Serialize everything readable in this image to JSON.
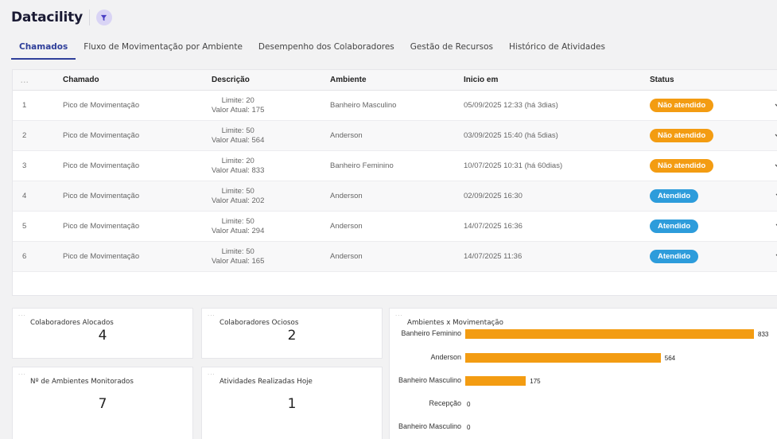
{
  "header": {
    "title": "Datacility"
  },
  "tabs": [
    {
      "label": "Chamados",
      "active": true
    },
    {
      "label": "Fluxo de Movimentação por Ambiente",
      "active": false
    },
    {
      "label": "Desempenho dos Colaboradores",
      "active": false
    },
    {
      "label": "Gestão de Recursos",
      "active": false
    },
    {
      "label": "Histórico de Atividades",
      "active": false
    }
  ],
  "table": {
    "menu": "...",
    "columns": {
      "chamado": "Chamado",
      "descricao": "Descrição",
      "ambiente": "Ambiente",
      "inicio": "Inicio em",
      "status": "Status"
    },
    "rows": [
      {
        "id": "1",
        "chamado": "Pico de Movimentação",
        "limite": "Limite: 20",
        "valor": "Valor Atual: 175",
        "ambiente": "Banheiro Masculino",
        "inicio": "05/09/2025 12:33 (há 3dias)",
        "status": "Não atendido",
        "status_color": "#f39c12"
      },
      {
        "id": "2",
        "chamado": "Pico de Movimentação",
        "limite": "Limite: 50",
        "valor": "Valor Atual: 564",
        "ambiente": "Anderson",
        "inicio": "03/09/2025 15:40 (há 5dias)",
        "status": "Não atendido",
        "status_color": "#f39c12"
      },
      {
        "id": "3",
        "chamado": "Pico de Movimentação",
        "limite": "Limite: 20",
        "valor": "Valor Atual: 833",
        "ambiente": "Banheiro Feminino",
        "inicio": "10/07/2025 10:31 (há 60dias)",
        "status": "Não atendido",
        "status_color": "#f39c12"
      },
      {
        "id": "4",
        "chamado": "Pico de Movimentação",
        "limite": "Limite: 50",
        "valor": "Valor Atual: 202",
        "ambiente": "Anderson",
        "inicio": "02/09/2025 16:30",
        "status": "Atendido",
        "status_color": "#2d9cdb"
      },
      {
        "id": "5",
        "chamado": "Pico de Movimentação",
        "limite": "Limite: 50",
        "valor": "Valor Atual: 294",
        "ambiente": "Anderson",
        "inicio": "14/07/2025 16:36",
        "status": "Atendido",
        "status_color": "#2d9cdb"
      },
      {
        "id": "6",
        "chamado": "Pico de Movimentação",
        "limite": "Limite: 50",
        "valor": "Valor Atual: 165",
        "ambiente": "Anderson",
        "inicio": "14/07/2025 11:36",
        "status": "Atendido",
        "status_color": "#2d9cdb"
      }
    ]
  },
  "cards": {
    "alocados": {
      "title": "Colaboradores Alocados",
      "value": "4"
    },
    "ociosos": {
      "title": "Colaboradores Ociosos",
      "value": "2"
    },
    "ambientes": {
      "title": "Nº de Ambientes Monitorados",
      "value": "7"
    },
    "atividades": {
      "title": "Atividades Realizadas Hoje",
      "value": "1"
    }
  },
  "chart_data": {
    "type": "bar",
    "orientation": "horizontal",
    "title": "Ambientes x Movimentação",
    "categories": [
      "Banheiro Feminino",
      "Anderson",
      "Banheiro Masculino",
      "Recepção",
      "Banheiro Masculino"
    ],
    "values": [
      833,
      564,
      175,
      0,
      0
    ],
    "bar_color": "#f39c12",
    "xlim": [
      0,
      833
    ],
    "grid": false,
    "legend": "none"
  }
}
